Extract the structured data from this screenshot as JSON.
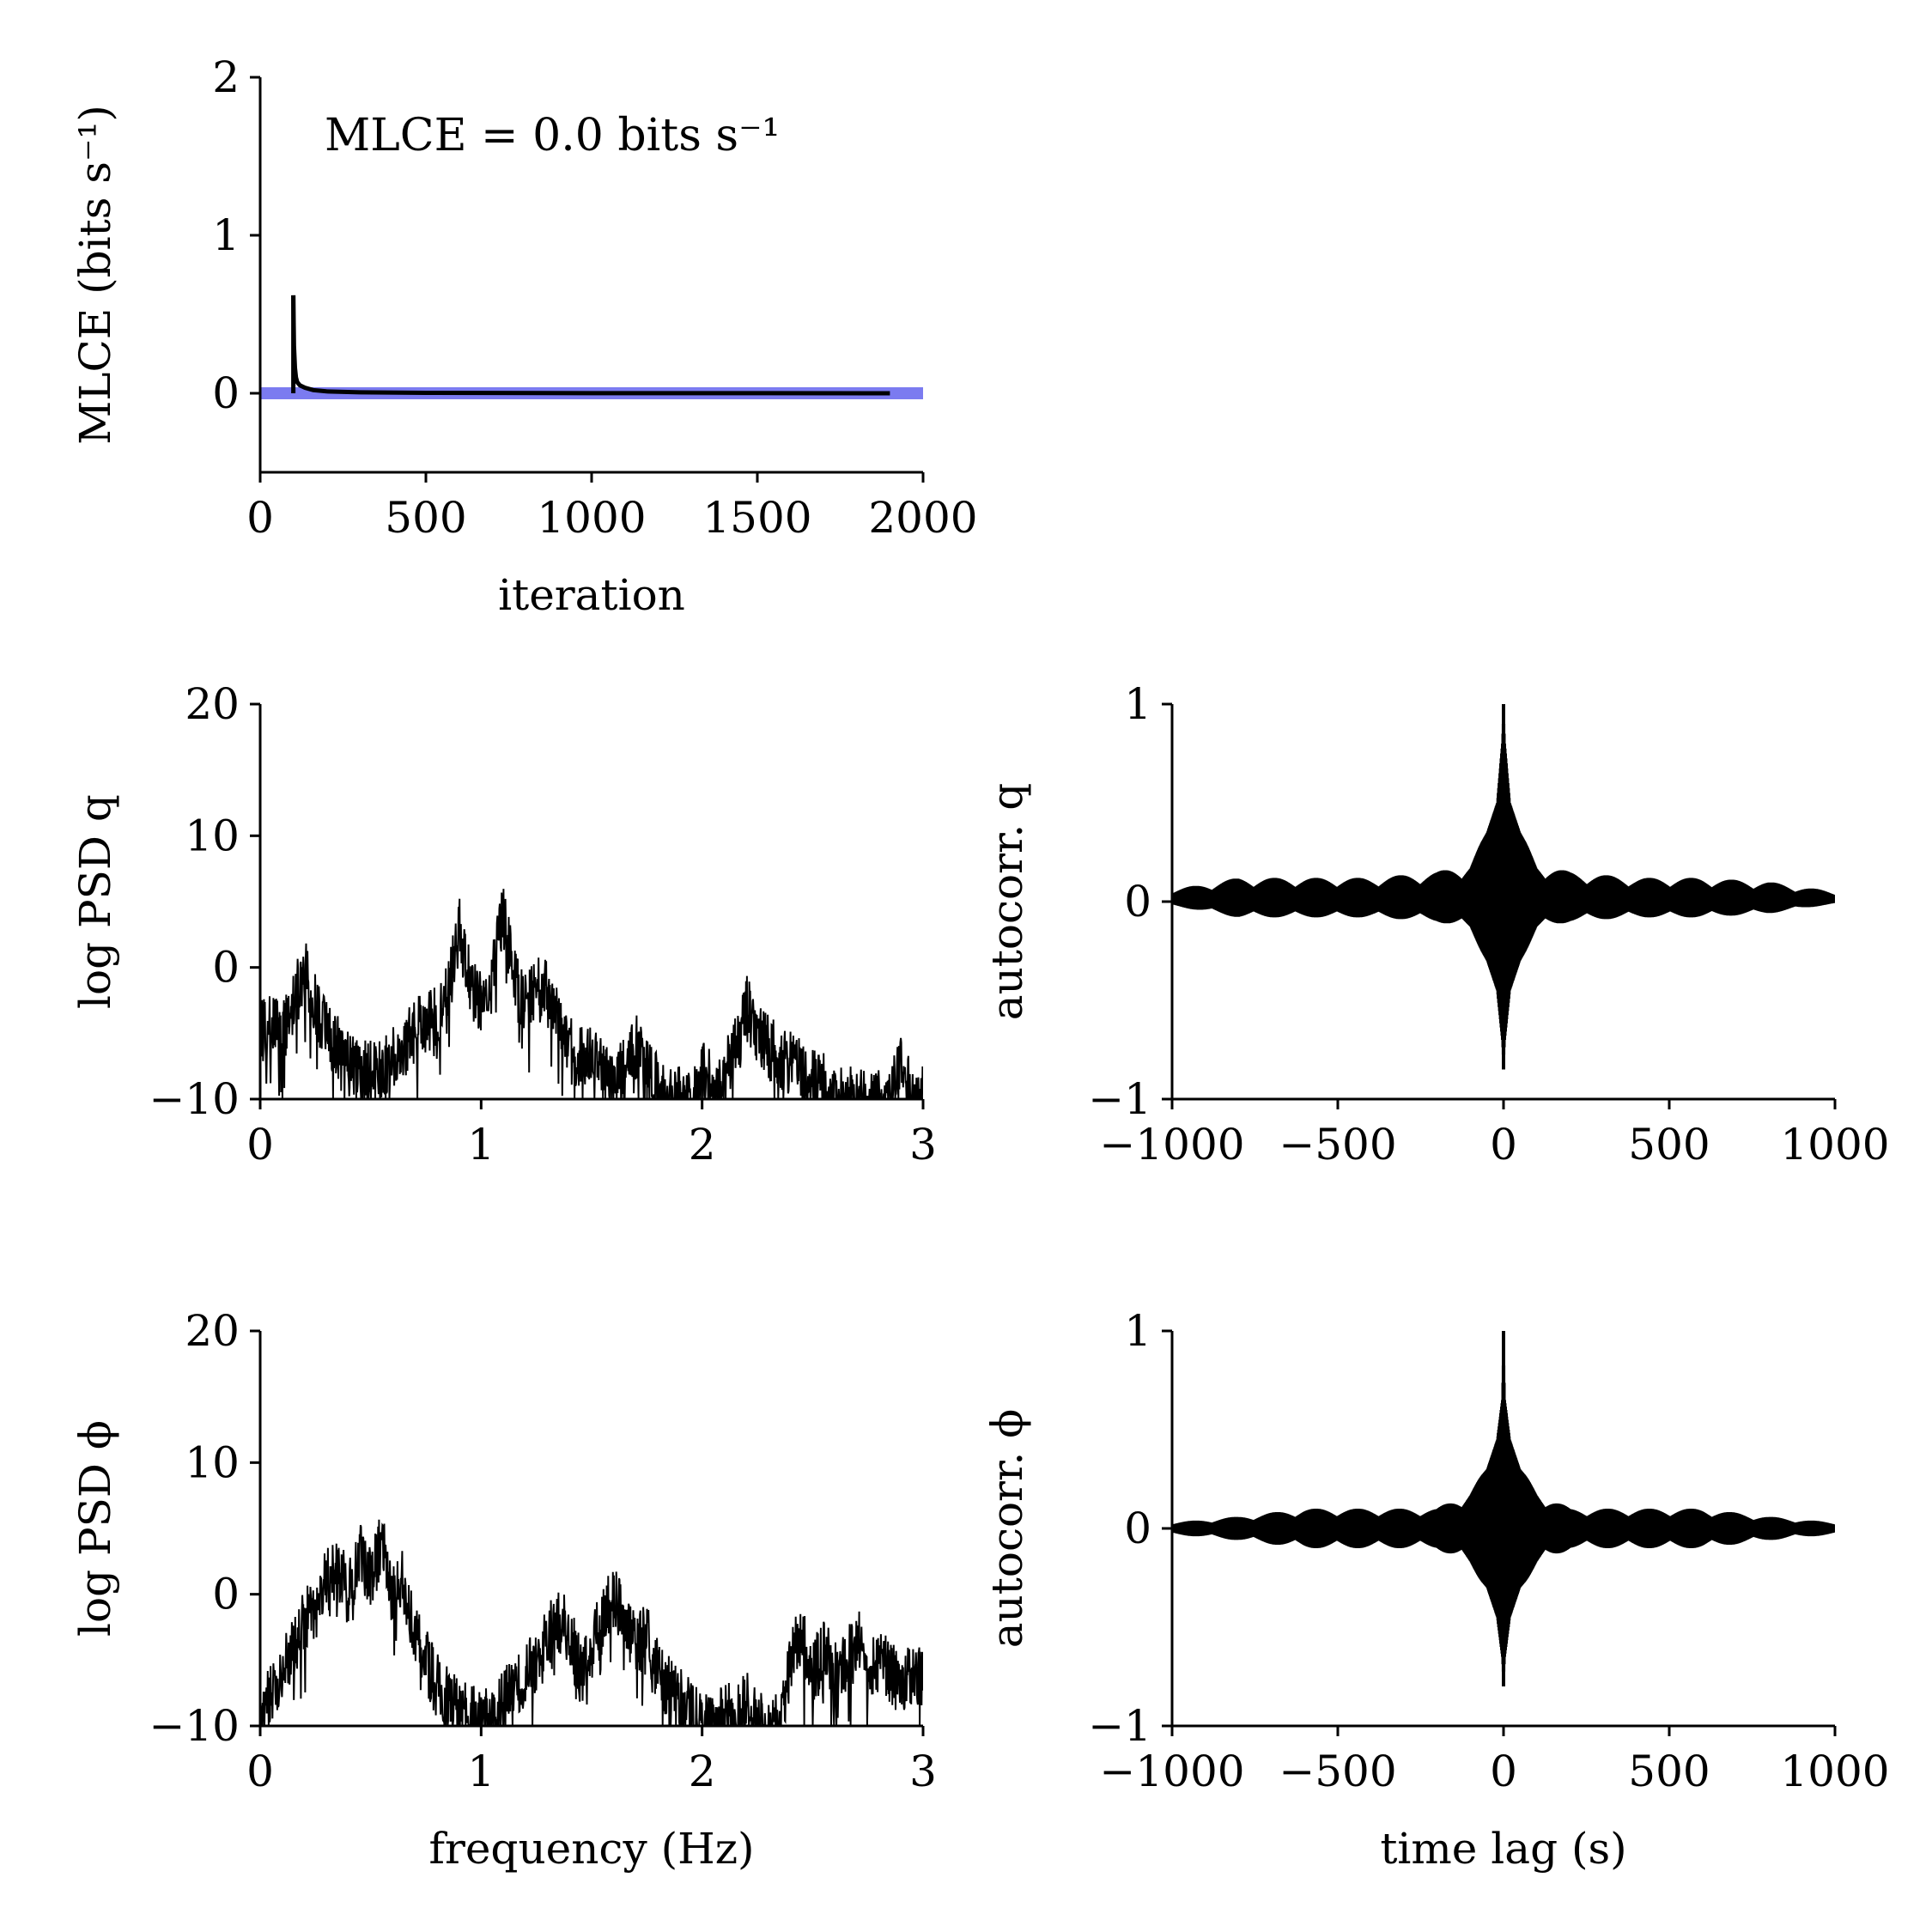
{
  "chart_data": [
    {
      "id": "mlce",
      "type": "line",
      "xlabel": "iteration",
      "ylabel": "MLCE (bits s⁻¹)",
      "xlim": [
        0,
        2000
      ],
      "ylim": [
        -0.5,
        2
      ],
      "xticks": [
        0,
        500,
        1000,
        1500,
        2000
      ],
      "yticks": [
        0,
        1,
        2
      ],
      "xtick_labels": [
        "0",
        "500",
        "1000",
        "1500",
        "2000"
      ],
      "ytick_labels": [
        "0",
        "1",
        "2"
      ],
      "annotation": "MLCE = 0.0 bits s⁻¹",
      "reference_line": {
        "y": 0,
        "color": "#7b7bf0"
      },
      "series": [
        {
          "color": "#000000",
          "x": [
            100,
            102,
            105,
            108,
            112,
            120,
            135,
            160,
            200,
            300,
            500,
            1000,
            1500,
            1900
          ],
          "y": [
            0.62,
            0.3,
            0.16,
            0.1,
            0.07,
            0.05,
            0.035,
            0.02,
            0.012,
            0.006,
            0.003,
            0.001,
            0.0005,
            0.0002
          ]
        }
      ],
      "grid": false
    },
    {
      "id": "psd-q",
      "type": "line",
      "xlabel": "",
      "ylabel": "log PSD q",
      "xlim": [
        0,
        3
      ],
      "ylim": [
        -10,
        20
      ],
      "xticks": [
        0,
        1,
        2,
        3
      ],
      "yticks": [
        -10,
        0,
        10,
        20
      ],
      "xtick_labels": [
        "0",
        "1",
        "2",
        "3"
      ],
      "ytick_labels": [
        "−10",
        "0",
        "10",
        "20"
      ],
      "series": [
        {
          "color": "#000000",
          "x": [
            0.0,
            0.05,
            0.1,
            0.15,
            0.2,
            0.25,
            0.3,
            0.35,
            0.4,
            0.45,
            0.5,
            0.55,
            0.6,
            0.65,
            0.7,
            0.75,
            0.8,
            0.85,
            0.9,
            0.95,
            1.0,
            1.05,
            1.1,
            1.15,
            1.2,
            1.25,
            1.3,
            1.35,
            1.4,
            1.45,
            1.5,
            1.55,
            1.6,
            1.65,
            1.7,
            1.75,
            1.8,
            1.85,
            1.9,
            1.95,
            2.0,
            2.05,
            2.1,
            2.15,
            2.2,
            2.25,
            2.3,
            2.35,
            2.4,
            2.45,
            2.5,
            2.55,
            2.6,
            2.65,
            2.7,
            2.75,
            2.8,
            2.85,
            2.9,
            2.95
          ],
          "y": [
            -5,
            -4.5,
            -5,
            -3,
            0,
            -3,
            -5,
            -6,
            -7,
            -8,
            -8,
            -8,
            -7,
            -6,
            -5,
            -4,
            -4,
            -2,
            3,
            -1,
            -3,
            0,
            4,
            -1,
            -3,
            -1,
            -2,
            -4,
            -6,
            -7,
            -6,
            -8,
            -8,
            -8,
            -6,
            -8,
            -9,
            -10,
            -10,
            -10,
            -8,
            -9,
            -8,
            -6,
            -3,
            -5,
            -6,
            -7,
            -7,
            -8,
            -8,
            -9,
            -10,
            -10,
            -10,
            -10,
            -10,
            -10,
            -7,
            -10
          ]
        }
      ],
      "grid": false
    },
    {
      "id": "autocorr-q",
      "type": "line",
      "xlabel": "",
      "ylabel": "autocorr. q",
      "xlim": [
        -1000,
        1000
      ],
      "ylim": [
        -1,
        1
      ],
      "xticks": [
        -1000,
        -500,
        0,
        500,
        1000
      ],
      "yticks": [
        -1,
        0,
        1
      ],
      "xtick_labels": [
        "−1000",
        "−500",
        "0",
        "500",
        "1000"
      ],
      "ytick_labels": [
        "−1",
        "0",
        "1"
      ],
      "envelope": {
        "x": [
          -1000,
          -800,
          -600,
          -400,
          -200,
          -100,
          -50,
          -20,
          -5,
          0,
          5,
          20,
          50,
          100,
          200,
          400,
          600,
          800,
          1000
        ],
        "upper": [
          0.06,
          0.12,
          0.12,
          0.12,
          0.15,
          0.2,
          0.35,
          0.5,
          0.8,
          1.0,
          0.8,
          0.5,
          0.35,
          0.2,
          0.15,
          0.12,
          0.12,
          0.1,
          0.05
        ],
        "lower": [
          -0.02,
          -0.08,
          -0.08,
          -0.08,
          -0.1,
          -0.15,
          -0.3,
          -0.45,
          -0.7,
          -0.85,
          -0.7,
          -0.45,
          -0.3,
          -0.15,
          -0.1,
          -0.08,
          -0.08,
          -0.06,
          -0.01
        ]
      },
      "grid": false
    },
    {
      "id": "psd-phi",
      "type": "line",
      "xlabel": "frequency (Hz)",
      "ylabel": "log PSD ϕ",
      "xlim": [
        0,
        3
      ],
      "ylim": [
        -10,
        20
      ],
      "xticks": [
        0,
        1,
        2,
        3
      ],
      "yticks": [
        -10,
        0,
        10,
        20
      ],
      "xtick_labels": [
        "0",
        "1",
        "2",
        "3"
      ],
      "ytick_labels": [
        "−10",
        "0",
        "10",
        "20"
      ],
      "series": [
        {
          "color": "#000000",
          "x": [
            0.0,
            0.05,
            0.1,
            0.15,
            0.2,
            0.25,
            0.3,
            0.35,
            0.4,
            0.45,
            0.5,
            0.55,
            0.6,
            0.65,
            0.7,
            0.75,
            0.8,
            0.85,
            0.9,
            0.95,
            1.0,
            1.05,
            1.1,
            1.15,
            1.2,
            1.25,
            1.3,
            1.35,
            1.4,
            1.45,
            1.5,
            1.55,
            1.6,
            1.65,
            1.7,
            1.75,
            1.8,
            1.85,
            1.9,
            1.95,
            2.0,
            2.05,
            2.1,
            2.15,
            2.2,
            2.25,
            2.3,
            2.35,
            2.4,
            2.45,
            2.5,
            2.55,
            2.6,
            2.65,
            2.7,
            2.75,
            2.8,
            2.85,
            2.9,
            2.95
          ],
          "y": [
            -9,
            -7,
            -6,
            -4,
            -2,
            -1,
            1,
            2,
            0,
            3,
            1,
            4,
            0,
            1,
            -3,
            -5,
            -7,
            -8,
            -9,
            -9,
            -10,
            -9,
            -8,
            -7,
            -6,
            -5,
            -3,
            -2,
            -3,
            -6,
            -4,
            -2,
            0,
            -2,
            -4,
            -3,
            -6,
            -7,
            -8,
            -9,
            -10,
            -10,
            -9,
            -9,
            -8,
            -10,
            -10,
            -10,
            -5,
            -3,
            -6,
            -4,
            -6,
            -5,
            -3,
            -6,
            -5,
            -6,
            -7,
            -6
          ]
        }
      ],
      "grid": false
    },
    {
      "id": "autocorr-phi",
      "type": "line",
      "xlabel": "time lag (s)",
      "ylabel": "autocorr. ϕ",
      "xlim": [
        -1000,
        1000
      ],
      "ylim": [
        -1,
        1
      ],
      "xticks": [
        -1000,
        -500,
        0,
        500,
        1000
      ],
      "yticks": [
        -1,
        0,
        1
      ],
      "xtick_labels": [
        "−1000",
        "−500",
        "0",
        "500",
        "1000"
      ],
      "ytick_labels": [
        "−1",
        "0",
        "1"
      ],
      "envelope": {
        "x": [
          -1000,
          -800,
          -600,
          -400,
          -200,
          -100,
          -50,
          -20,
          -5,
          0,
          5,
          20,
          50,
          100,
          200,
          400,
          600,
          800,
          1000
        ],
        "upper": [
          0.03,
          0.06,
          0.1,
          0.1,
          0.1,
          0.2,
          0.3,
          0.45,
          0.65,
          1.0,
          0.65,
          0.45,
          0.3,
          0.2,
          0.1,
          0.1,
          0.1,
          0.06,
          0.03
        ],
        "lower": [
          -0.03,
          -0.06,
          -0.1,
          -0.1,
          -0.1,
          -0.2,
          -0.3,
          -0.45,
          -0.65,
          -0.8,
          -0.65,
          -0.45,
          -0.3,
          -0.2,
          -0.1,
          -0.1,
          -0.1,
          -0.06,
          -0.03
        ]
      },
      "grid": false
    }
  ]
}
